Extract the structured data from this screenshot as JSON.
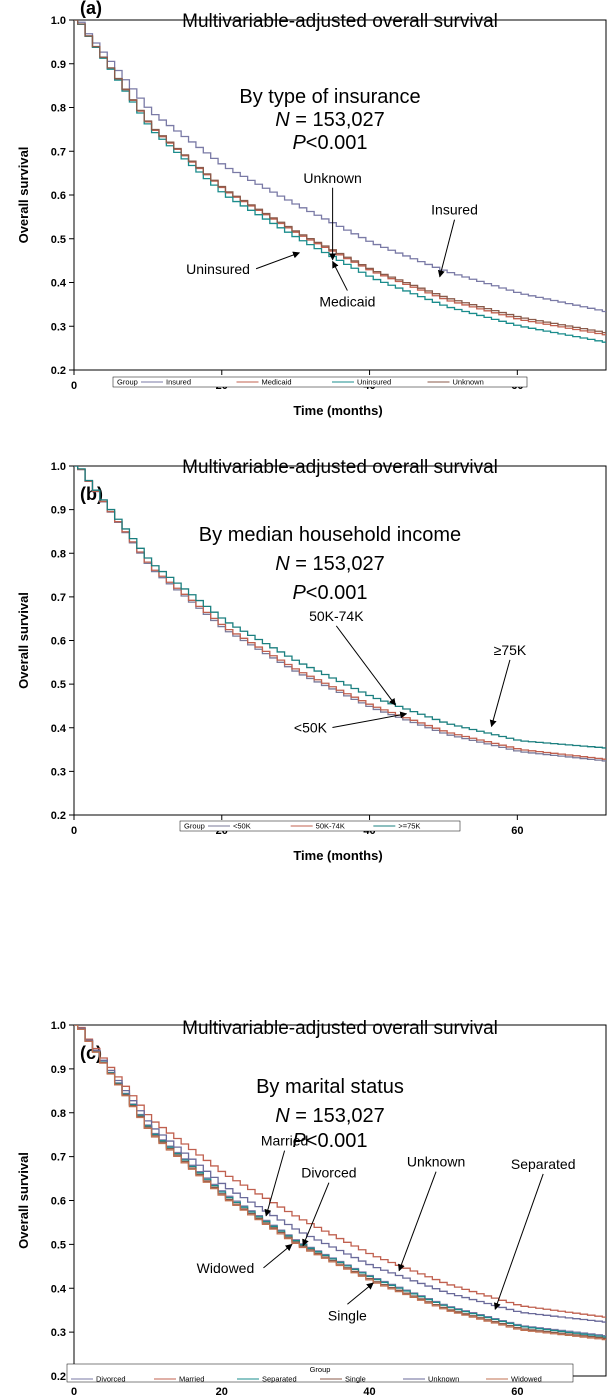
{
  "chart_data": [
    {
      "type": "line",
      "panel_label": "(a)",
      "title": "Multivariable-adjusted overall survival",
      "subtitle_lines": [
        {
          "text": "By type of insurance"
        },
        {
          "italic": "N",
          "text": " = 153,027"
        },
        {
          "italic": "P",
          "text": "<0.001"
        }
      ],
      "xlabel": "Time (months)",
      "ylabel": "Overall survival",
      "xlim": [
        0,
        72
      ],
      "ylim": [
        0.2,
        1.0
      ],
      "xticks": [
        0,
        20,
        40,
        60
      ],
      "yticks": [
        0.2,
        0.3,
        0.4,
        0.5,
        0.6,
        0.7,
        0.8,
        0.9,
        1.0
      ],
      "step": true,
      "legend": {
        "title": "Group",
        "placement": "bottom-inside"
      },
      "series": [
        {
          "name": "Insured",
          "color": "#7a7aa6",
          "x": [
            0,
            10,
            20,
            30,
            40,
            50,
            60,
            72
          ],
          "y": [
            1.0,
            0.79,
            0.665,
            0.575,
            0.49,
            0.425,
            0.375,
            0.332
          ]
        },
        {
          "name": "Medicaid",
          "color": "#c0604f",
          "x": [
            0,
            10,
            20,
            30,
            40,
            50,
            60,
            72
          ],
          "y": [
            1.0,
            0.755,
            0.61,
            0.51,
            0.425,
            0.36,
            0.315,
            0.279
          ]
        },
        {
          "name": "Uninsured",
          "color": "#1a8c8c",
          "x": [
            0,
            10,
            20,
            30,
            40,
            50,
            60,
            72
          ],
          "y": [
            1.0,
            0.75,
            0.6,
            0.5,
            0.41,
            0.345,
            0.3,
            0.262
          ]
        },
        {
          "name": "Unknown",
          "color": "#8a5a4a",
          "x": [
            0,
            10,
            20,
            30,
            40,
            50,
            60,
            72
          ],
          "y": [
            1.0,
            0.757,
            0.612,
            0.513,
            0.428,
            0.365,
            0.32,
            0.284
          ]
        }
      ],
      "annotations": [
        {
          "text": "Unknown",
          "tx": 35,
          "ty": 0.628,
          "ax": 35,
          "ay": 0.452,
          "anchor": "middle"
        },
        {
          "text": "Insured",
          "tx": 51.5,
          "ty": 0.555,
          "ax": 49.5,
          "ay": 0.413,
          "anchor": "middle"
        },
        {
          "text": "Uninsured",
          "tx": 19.5,
          "ty": 0.42,
          "ax": 30.5,
          "ay": 0.468,
          "anchor": "middle"
        },
        {
          "text": "Medicaid",
          "tx": 37,
          "ty": 0.345,
          "ax": 35,
          "ay": 0.448,
          "anchor": "middle"
        }
      ]
    },
    {
      "type": "line",
      "panel_label": "(b)",
      "title": "Multivariable-adjusted overall survival",
      "subtitle_lines": [
        {
          "text": "By median household income"
        },
        {
          "italic": "N",
          "text": " = 153,027"
        },
        {
          "italic": "P",
          "text": "<0.001"
        }
      ],
      "xlabel": "Time (months)",
      "ylabel": "Overall survival",
      "xlim": [
        0,
        72
      ],
      "ylim": [
        0.2,
        1.0
      ],
      "xticks": [
        0,
        20,
        40,
        60
      ],
      "yticks": [
        0.2,
        0.3,
        0.4,
        0.5,
        0.6,
        0.7,
        0.8,
        0.9,
        1.0
      ],
      "step": true,
      "legend": {
        "title": "Group",
        "placement": "bottom-inside"
      },
      "series": [
        {
          "name": "<50K",
          "color": "#7a7a9a",
          "x": [
            0,
            10,
            20,
            30,
            40,
            50,
            60,
            72
          ],
          "y": [
            1.0,
            0.765,
            0.625,
            0.525,
            0.445,
            0.385,
            0.345,
            0.323
          ]
        },
        {
          "name": "50K-74K",
          "color": "#c0604f",
          "x": [
            0,
            10,
            20,
            30,
            40,
            50,
            60,
            72
          ],
          "y": [
            1.0,
            0.768,
            0.63,
            0.53,
            0.45,
            0.39,
            0.35,
            0.327
          ]
        },
        {
          "name": ">=75K",
          "color": "#1a7f7f",
          "x": [
            0,
            10,
            20,
            30,
            40,
            50,
            60,
            72
          ],
          "y": [
            1.0,
            0.778,
            0.645,
            0.55,
            0.47,
            0.41,
            0.37,
            0.353
          ]
        }
      ],
      "annotations": [
        {
          "text": "50K-74K",
          "tx": 35.5,
          "ty": 0.645,
          "ax": 43.5,
          "ay": 0.452,
          "anchor": "middle"
        },
        {
          "text": "≥75K",
          "tx": 59,
          "ty": 0.567,
          "ax": 56.5,
          "ay": 0.403,
          "anchor": "middle"
        },
        {
          "text": "<50K",
          "tx": 32,
          "ty": 0.389,
          "ax": 45,
          "ay": 0.432,
          "anchor": "middle"
        }
      ]
    },
    {
      "type": "line",
      "panel_label": "(c)",
      "title": "Multivariable-adjusted overall survival",
      "subtitle_lines": [
        {
          "text": "By marital status"
        },
        {
          "italic": "N",
          "text": " = 153,027"
        },
        {
          "italic": "P",
          "text": "<0.001"
        }
      ],
      "xlabel": "Time (months)",
      "ylabel": "Overall survival",
      "xlim": [
        0,
        72
      ],
      "ylim": [
        0.2,
        1.0
      ],
      "xticks": [
        0,
        20,
        40,
        60
      ],
      "yticks": [
        0.2,
        0.3,
        0.4,
        0.5,
        0.6,
        0.7,
        0.8,
        0.9,
        1.0
      ],
      "step": true,
      "legend": {
        "title": "Group",
        "placement": "bottom-inside"
      },
      "series": [
        {
          "name": "Divorced",
          "color": "#7a7aa6",
          "x": [
            0,
            10,
            20,
            30,
            40,
            50,
            60,
            72
          ],
          "y": [
            1.0,
            0.76,
            0.615,
            0.505,
            0.425,
            0.36,
            0.315,
            0.291
          ]
        },
        {
          "name": "Married",
          "color": "#c0604f",
          "x": [
            0,
            10,
            20,
            30,
            40,
            50,
            60,
            72
          ],
          "y": [
            1.0,
            0.785,
            0.66,
            0.56,
            0.475,
            0.41,
            0.36,
            0.333
          ]
        },
        {
          "name": "Separated",
          "color": "#1a8c8c",
          "x": [
            0,
            10,
            20,
            30,
            40,
            50,
            60,
            72
          ],
          "y": [
            1.0,
            0.758,
            0.612,
            0.503,
            0.423,
            0.358,
            0.313,
            0.288
          ]
        },
        {
          "name": "Single",
          "color": "#8a5a4a",
          "x": [
            0,
            10,
            20,
            30,
            40,
            50,
            60,
            72
          ],
          "y": [
            1.0,
            0.755,
            0.608,
            0.5,
            0.418,
            0.353,
            0.308,
            0.285
          ]
        },
        {
          "name": "Unknown",
          "color": "#6a6a9a",
          "x": [
            0,
            10,
            20,
            30,
            40,
            50,
            60,
            72
          ],
          "y": [
            1.0,
            0.77,
            0.632,
            0.53,
            0.45,
            0.39,
            0.345,
            0.322
          ]
        },
        {
          "name": "Widowed",
          "color": "#c07050",
          "x": [
            0,
            10,
            20,
            30,
            40,
            50,
            60,
            72
          ],
          "y": [
            1.0,
            0.752,
            0.605,
            0.497,
            0.415,
            0.35,
            0.305,
            0.282
          ]
        }
      ],
      "annotations": [
        {
          "text": "Married",
          "tx": 28.5,
          "ty": 0.725,
          "ax": 26,
          "ay": 0.565,
          "anchor": "middle"
        },
        {
          "text": "Divorced",
          "tx": 34.5,
          "ty": 0.652,
          "ax": 31,
          "ay": 0.497,
          "anchor": "middle"
        },
        {
          "text": "Unknown",
          "tx": 49,
          "ty": 0.677,
          "ax": 44,
          "ay": 0.44,
          "anchor": "middle"
        },
        {
          "text": "Separated",
          "tx": 63.5,
          "ty": 0.672,
          "ax": 57,
          "ay": 0.352,
          "anchor": "middle"
        },
        {
          "text": "Widowed",
          "tx": 20.5,
          "ty": 0.435,
          "ax": 29.5,
          "ay": 0.5,
          "anchor": "middle"
        },
        {
          "text": "Single",
          "tx": 37,
          "ty": 0.327,
          "ax": 40.5,
          "ay": 0.412,
          "anchor": "middle"
        }
      ]
    }
  ]
}
